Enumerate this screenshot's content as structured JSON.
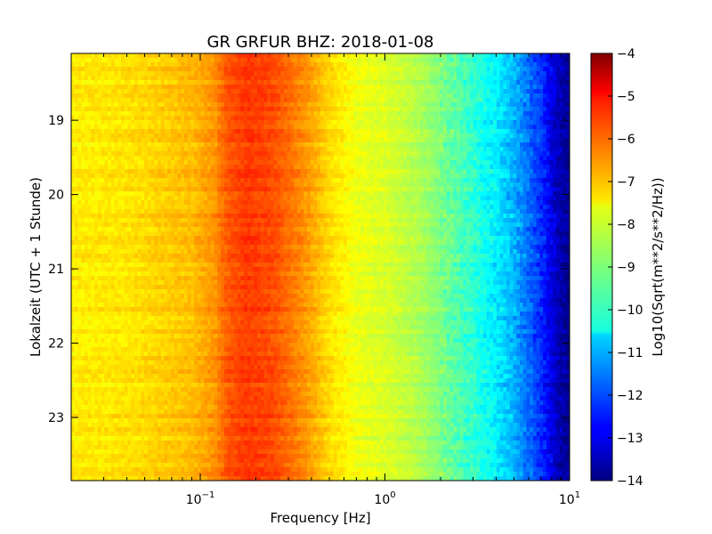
{
  "chart_data": {
    "type": "heatmap",
    "title": "GR GRFUR BHZ: 2018-01-08",
    "xlabel": "Frequency [Hz]",
    "ylabel": "Lokalzeit (UTC + 1 Stunde)",
    "colorbar_label": "Log10(Sqrt(m**2/s**2/Hz))",
    "x_scale": "log",
    "xlim": [
      0.02,
      10
    ],
    "x_ticks": [
      {
        "value": 0.1,
        "base": "10",
        "exp": "−1"
      },
      {
        "value": 1,
        "base": "10",
        "exp": "0"
      },
      {
        "value": 10,
        "base": "10",
        "exp": "1"
      }
    ],
    "ylim": [
      18.1,
      23.85
    ],
    "y_inverted": true,
    "y_ticks": [
      {
        "value": 19,
        "label": "19"
      },
      {
        "value": 20,
        "label": "20"
      },
      {
        "value": 21,
        "label": "21"
      },
      {
        "value": 22,
        "label": "22"
      },
      {
        "value": 23,
        "label": "23"
      }
    ],
    "colormap": "jet",
    "clim": [
      -14,
      -4
    ],
    "colorbar_ticks": [
      {
        "value": -4,
        "label": "−4"
      },
      {
        "value": -5,
        "label": "−5"
      },
      {
        "value": -6,
        "label": "−6"
      },
      {
        "value": -7,
        "label": "−7"
      },
      {
        "value": -8,
        "label": "−8"
      },
      {
        "value": -9,
        "label": "−9"
      },
      {
        "value": -10,
        "label": "−10"
      },
      {
        "value": -11,
        "label": "−11"
      },
      {
        "value": -12,
        "label": "−12"
      },
      {
        "value": -13,
        "label": "−13"
      },
      {
        "value": -14,
        "label": "−14"
      }
    ],
    "spectrum_profile": {
      "frequency_hz": [
        0.02,
        0.04,
        0.06,
        0.09,
        0.12,
        0.14,
        0.18,
        0.25,
        0.35,
        0.5,
        0.7,
        1.0,
        1.5,
        2.0,
        3.0,
        4.0,
        5.0,
        6.0,
        7.0,
        8.0,
        9.0,
        10.0
      ],
      "level": [
        -7.6,
        -7.5,
        -7.3,
        -7.1,
        -6.7,
        -6.1,
        -5.8,
        -6.0,
        -6.6,
        -7.4,
        -7.9,
        -8.1,
        -8.5,
        -9.0,
        -9.8,
        -10.4,
        -11.0,
        -11.7,
        -12.3,
        -13.0,
        -13.6,
        -13.9
      ]
    }
  }
}
